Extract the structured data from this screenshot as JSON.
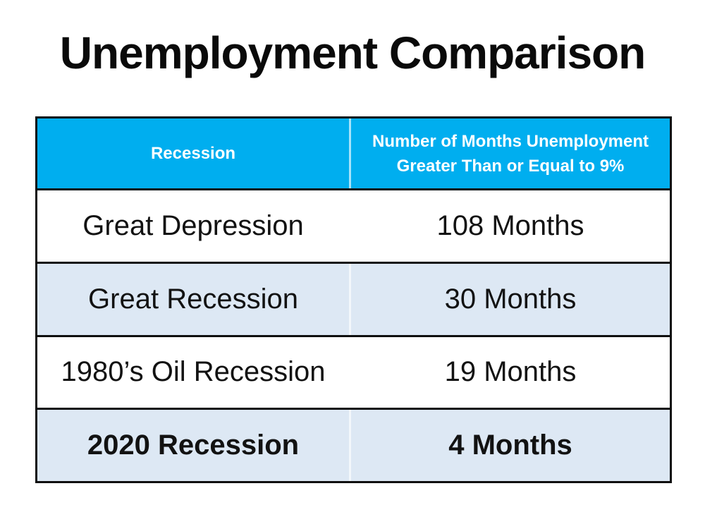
{
  "chart_data": {
    "type": "table",
    "title": "Unemployment Comparison",
    "columns": [
      {
        "label": "Recession",
        "lines": [
          "Recession"
        ]
      },
      {
        "label": "Number of Months Unemployment Greater Than or Equal to 9%",
        "lines": [
          "Number of Months Unemployment",
          "Greater Than or Equal to 9%"
        ]
      }
    ],
    "rows": [
      {
        "recession": "Great Depression",
        "months_label": "108 Months",
        "months": 108,
        "emphasized": false
      },
      {
        "recession": "Great Recession",
        "months_label": "30 Months",
        "months": 30,
        "emphasized": false
      },
      {
        "recession": "1980’s Oil Recession",
        "months_label": "19 Months",
        "months": 19,
        "emphasized": false
      },
      {
        "recession": "2020 Recession",
        "months_label": "4 Months",
        "months": 4,
        "emphasized": true
      }
    ],
    "layout": {
      "legend": "none",
      "grid": "table-borders"
    }
  },
  "colors": {
    "header_bg": "#00AEEF",
    "alt_row_bg": "#DDE8F4",
    "row_bg": "#FFFFFF",
    "border": "#0F0F0F",
    "header_text": "#FFFFFF",
    "body_text": "#121212",
    "title_text": "#0A0A0A"
  }
}
